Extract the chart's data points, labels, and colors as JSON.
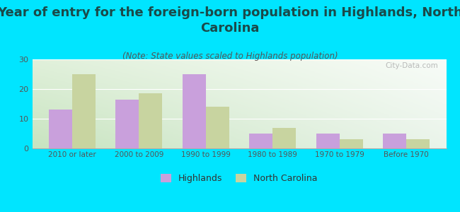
{
  "title": "Year of entry for the foreign-born population in Highlands, North\nCarolina",
  "subtitle": "(Note: State values scaled to Highlands population)",
  "categories": [
    "2010 or later",
    "2000 to 2009",
    "1990 to 1999",
    "1980 to 1989",
    "1970 to 1979",
    "Before 1970"
  ],
  "highlands_values": [
    13,
    16.5,
    25,
    5,
    5,
    5
  ],
  "nc_values": [
    25,
    18.5,
    14,
    7,
    3,
    3
  ],
  "highlands_color": "#c9a0dc",
  "nc_color": "#c8d4a0",
  "background_color": "#00e5ff",
  "grad_top_left": "#d4ecd4",
  "grad_top_right": "#f0f8f0",
  "grad_bottom_left": "#c8e8c0",
  "grad_bottom_right": "#ffffff",
  "ylim": [
    0,
    30
  ],
  "yticks": [
    0,
    10,
    20,
    30
  ],
  "bar_width": 0.35,
  "title_fontsize": 13,
  "subtitle_fontsize": 8.5,
  "title_color": "#1a4a4a",
  "subtitle_color": "#555555",
  "tick_color": "#555555",
  "watermark": "City-Data.com",
  "legend_labels": [
    "Highlands",
    "North Carolina"
  ]
}
